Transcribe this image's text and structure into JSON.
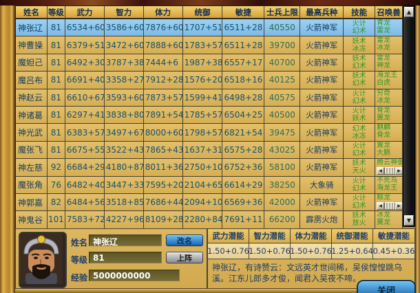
{
  "table": {
    "columns": [
      "姓名",
      "等级",
      "武力",
      "智力",
      "体力",
      "统御",
      "敏捷",
      "士兵上限",
      "最高兵种",
      "技能",
      "召唤兽"
    ],
    "rows": [
      {
        "name": "神张辽",
        "level": "81",
        "wuli": "6534+60",
        "zhili": "3586+60",
        "tili": "7876+60",
        "tongyu": "1707+51",
        "minjie": "6511+28",
        "limit": "40550",
        "unit": "火箭神军",
        "skills": [
          "火计",
          "幻术"
        ],
        "summons": [
          "青龙",
          "雷龙"
        ],
        "selected": true,
        "summon_scroll": false
      },
      {
        "name": "神曹操",
        "level": "81",
        "wuli": "6379+51",
        "zhili": "3472+60",
        "tili": "7888+60",
        "tongyu": "1783+57",
        "minjie": "6511+28",
        "limit": "39700",
        "unit": "火箭神军",
        "skills": [
          "妖术",
          "冰冻"
        ],
        "summons": [
          "雷龙",
          "冰龙"
        ],
        "selected": false,
        "summon_scroll": false
      },
      {
        "name": "魔妲己",
        "level": "81",
        "wuli": "6492+30",
        "zhili": "3787+38",
        "tili": "7444+6",
        "tongyu": "1987+38",
        "minjie": "6557+17",
        "limit": "40700",
        "unit": "火箭神军",
        "skills": [
          "妖术",
          "幻术"
        ],
        "summons": [
          "雷龙",
          "神龙"
        ],
        "selected": false,
        "summon_scroll": false
      },
      {
        "name": "魔吕布",
        "level": "81",
        "wuli": "6691+40",
        "zhili": "3358+27",
        "tili": "7912+28",
        "tongyu": "1576+20",
        "minjie": "6518+16",
        "limit": "40125",
        "unit": "火箭神军",
        "skills": [
          "妖术",
          "幻术"
        ],
        "summons": [
          "海龙王",
          "白虎"
        ],
        "selected": false,
        "summon_scroll": false
      },
      {
        "name": "神赵云",
        "level": "81",
        "wuli": "6610+67",
        "zhili": "3593+60",
        "tili": "7873+57",
        "tongyu": "1599+41",
        "minjie": "6498+28",
        "limit": "40575",
        "unit": "火箭神军",
        "skills": [
          "火计",
          "幻术"
        ],
        "summons": [
          "穷奇",
          "冰龙"
        ],
        "selected": false,
        "summon_scroll": false
      },
      {
        "name": "神诸葛",
        "level": "81",
        "wuli": "6297+41",
        "zhili": "3838+80",
        "tili": "7891+54",
        "tongyu": "1785+57",
        "minjie": "6504+25",
        "limit": "40500",
        "unit": "火箭神军",
        "skills": [
          "火计",
          "妖术"
        ],
        "summons": [
          "骨龙",
          "翼龙"
        ],
        "selected": false,
        "summon_scroll": false
      },
      {
        "name": "神光武",
        "level": "81",
        "wuli": "6383+57",
        "zhili": "3497+67",
        "tili": "8000+60",
        "tongyu": "1798+57",
        "minjie": "6821+54",
        "limit": "39475",
        "unit": "火箭神军",
        "skills": [
          "幻术",
          "冰冻"
        ],
        "summons": [
          "麒麟",
          "骨龙"
        ],
        "selected": false,
        "summon_scroll": false
      },
      {
        "name": "魔张飞",
        "level": "81",
        "wuli": "6675+55",
        "zhili": "3522+43",
        "tili": "7865+43",
        "tongyu": "1637+31",
        "minjie": "6575+28",
        "limit": "43025",
        "unit": "火箭神军",
        "skills": [
          "火计",
          "幻术"
        ],
        "summons": [
          "翼龙",
          "大鹏"
        ],
        "selected": false,
        "summon_scroll": false
      },
      {
        "name": "神左慈",
        "level": "92",
        "wuli": "6684+29",
        "zhili": "4180+87",
        "tili": "8011+36",
        "tongyu": "2750+10",
        "minjie": "6752+36",
        "limit": "58100",
        "unit": "火箭神军",
        "skills": [
          "妖术",
          "天火"
        ],
        "summons": [
          "腾云神兽"
        ],
        "selected": false,
        "summon_scroll": true
      },
      {
        "name": "魔张角",
        "level": "76",
        "wuli": "6482+40",
        "zhili": "3447+33",
        "tili": "7595+20",
        "tongyu": "2104+65",
        "minjie": "6614+29",
        "limit": "38250",
        "unit": "大象骑",
        "skills": [
          "火计",
          "幻术"
        ],
        "summons": [
          "不死鸟",
          "海龙王"
        ],
        "selected": false,
        "summon_scroll": false
      },
      {
        "name": "神郭嘉",
        "level": "82",
        "wuli": "6484+56",
        "zhili": "3518+85",
        "tili": "7686+44",
        "tongyu": "2094+10",
        "minjie": "6569+36",
        "limit": "42000",
        "unit": "火箭神军",
        "skills": [
          "火计",
          "幻术"
        ],
        "summons": [
          "鲸龙"
        ],
        "selected": false,
        "summon_scroll": true
      },
      {
        "name": "神鬼谷",
        "level": "101",
        "wuli": "7583+72",
        "zhili": "4227+96",
        "tili": "8109+28",
        "tongyu": "2280+84",
        "minjie": "7691+11",
        "limit": "66200",
        "unit": "霹雳火炮",
        "skills": [
          "妖术",
          "放火"
        ],
        "summons": [
          "冰龙",
          "翼龙"
        ],
        "selected": false,
        "summon_scroll": false
      }
    ]
  },
  "character_panel": {
    "name_label": "姓名",
    "name_value": "神张辽",
    "level_label": "等级",
    "level_value": "81",
    "exp_label": "经验",
    "exp_value": "5000000000",
    "rename_button": "改名",
    "deploy_button": "上阵"
  },
  "potential_panel": {
    "headers": [
      "武力潜能",
      "智力潜能",
      "体力潜能",
      "统御潜能",
      "敏捷潜能"
    ],
    "values": [
      "1.50+0.76",
      "1.50+0.76",
      "1.50+0.76",
      "1.25+0.64",
      "0.45+0.36"
    ]
  },
  "description": {
    "text": "神张辽，有诗赞云：文远英才世间稀，吴侯惶惶跳乌溪。江东儿郎多才俊，闻君入吴夜不啼。"
  },
  "scrollbar": {
    "up_icon": "▲",
    "down_icon": "▼",
    "left_icon": "◀",
    "right_icon": "▶"
  },
  "close_button_label": "关闭",
  "colors": {
    "selected_row": "#8ecaef",
    "row_tan": "#dcb45e",
    "header_gold": "#e3b44c",
    "skill_green": "#2e9426",
    "stat_blue": "#17506b",
    "limit_green": "#2f6b52",
    "rename_blue": "#2f86c8"
  }
}
